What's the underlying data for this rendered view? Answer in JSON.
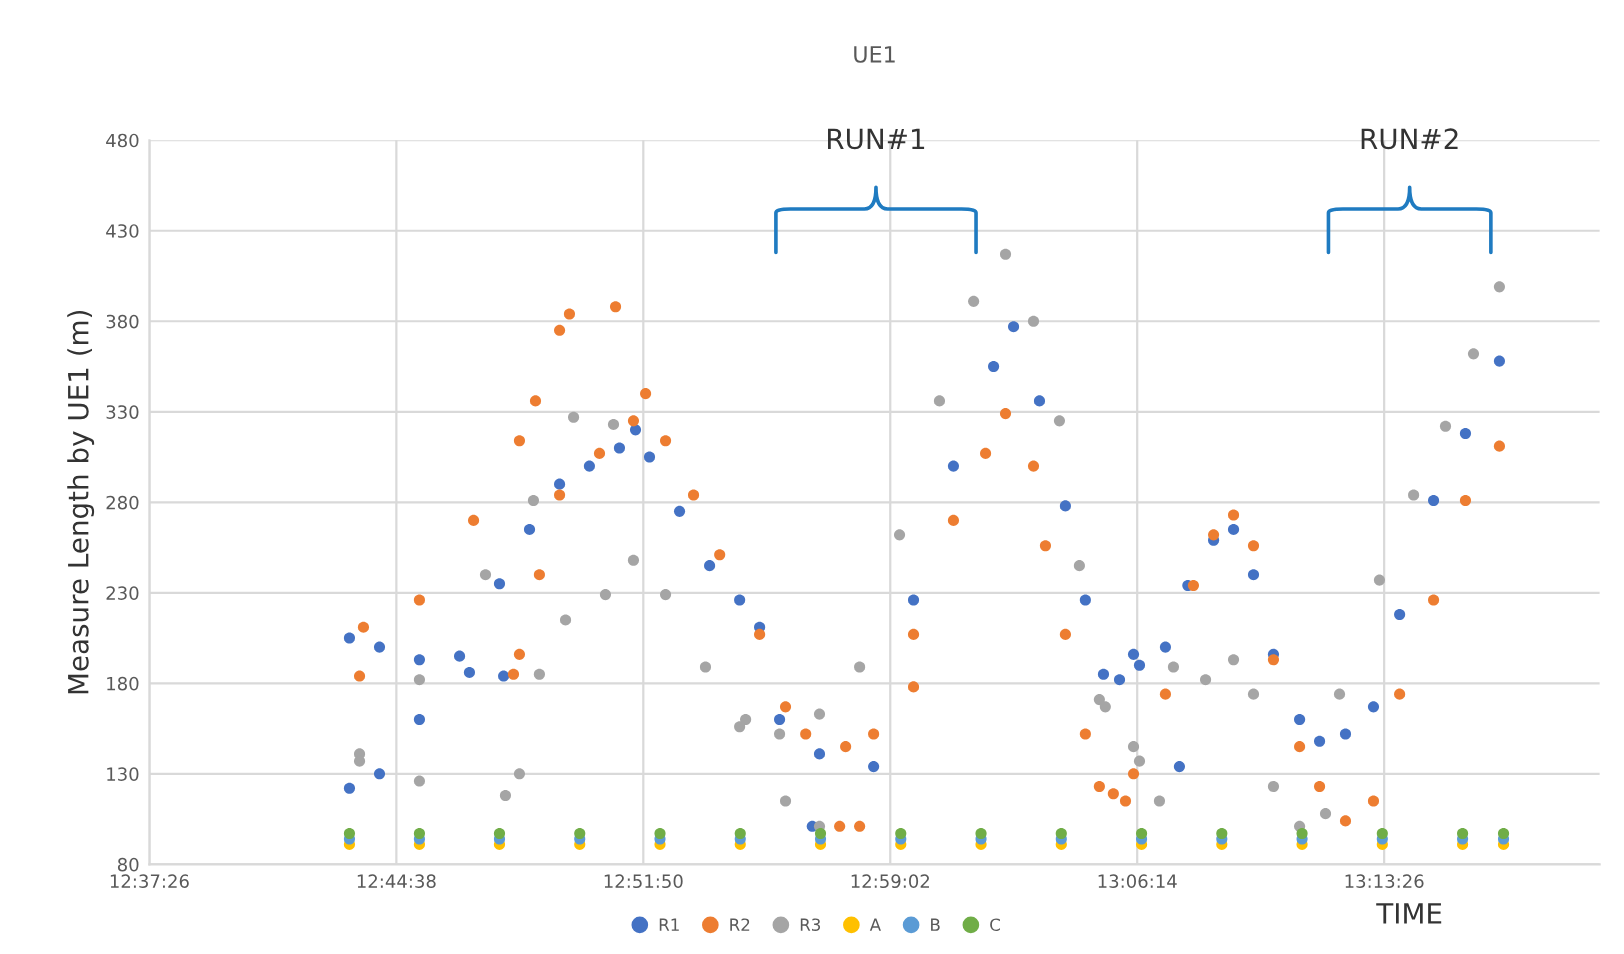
{
  "chart_data": {
    "type": "scatter",
    "title": "UE1",
    "xlabel": "TIME",
    "ylabel": "Measure Length by UE1 (m)",
    "annotations": [
      "RUN#1",
      "RUN#2"
    ],
    "xlim": [
      12.62389,
      13.3286
    ],
    "ylim": [
      80,
      480
    ],
    "xticks": [
      {
        "value": 12.62389,
        "label": "12:37:26"
      },
      {
        "value": 12.74389,
        "label": "12:44:38"
      },
      {
        "value": 12.86389,
        "label": "12:51:50"
      },
      {
        "value": 12.98389,
        "label": "12:59:02"
      },
      {
        "value": 13.10389,
        "label": "13:06:14"
      },
      {
        "value": 13.22389,
        "label": "13:13:26"
      }
    ],
    "yticks": [
      80,
      130,
      180,
      230,
      280,
      330,
      380,
      430,
      480
    ],
    "grid": true,
    "legend": "bottom",
    "marker": "circle",
    "series": [
      {
        "name": "R1",
        "color": "#4472c4",
        "x": [
          12.7211,
          12.7357,
          12.7551,
          12.7794,
          12.796,
          12.7211,
          12.7357,
          12.7551,
          12.7746,
          12.794,
          12.8086,
          12.8232,
          12.8377,
          12.8523,
          12.8601,
          12.8669,
          12.8815,
          12.8961,
          12.9107,
          12.9204,
          12.9301,
          12.946,
          12.9495,
          12.9758,
          12.9952,
          13.0146,
          13.0341,
          13.0438,
          13.0564,
          13.069,
          13.0787,
          13.0875,
          13.0953,
          13.1021,
          13.105,
          13.1176,
          13.1244,
          13.1285,
          13.141,
          13.1507,
          13.1604,
          13.1701,
          13.1828,
          13.1925,
          13.2051,
          13.2187,
          13.2314,
          13.2479,
          13.2634,
          13.2799
        ],
        "values": [
          205,
          200,
          193,
          186,
          184,
          122,
          130,
          160,
          195,
          235,
          265,
          290,
          300,
          310,
          320,
          305,
          275,
          245,
          226,
          211,
          160,
          101,
          141,
          134,
          226,
          300,
          355,
          377,
          336,
          278,
          226,
          185,
          182,
          196,
          190,
          200,
          134,
          234,
          259,
          265,
          240,
          196,
          160,
          148,
          152,
          167,
          218,
          281,
          318,
          358
        ]
      },
      {
        "name": "R2",
        "color": "#ed7d31",
        "x": [
          12.726,
          12.7551,
          12.7814,
          12.8037,
          12.8115,
          12.7279,
          12.8008,
          12.8037,
          12.8134,
          12.8232,
          12.8426,
          12.8591,
          12.865,
          12.8232,
          12.828,
          12.8504,
          12.8747,
          12.8883,
          12.901,
          12.9204,
          12.933,
          12.9428,
          12.9622,
          12.9758,
          12.9952,
          13.0146,
          13.0302,
          13.0399,
          13.0535,
          13.0593,
          13.069,
          13.0787,
          13.0923,
          13.1021,
          12.9593,
          12.969,
          12.9952,
          13.0855,
          13.0982,
          13.1176,
          13.1312,
          13.141,
          13.1507,
          13.1604,
          13.1701,
          13.1828,
          13.1925,
          13.2051,
          13.2187,
          13.2314,
          13.2479,
          13.2634,
          13.2799
        ],
        "values": [
          184,
          226,
          270,
          314,
          336,
          211,
          185,
          196,
          240,
          284,
          307,
          325,
          340,
          375,
          384,
          388,
          314,
          284,
          251,
          207,
          167,
          152,
          145,
          152,
          207,
          270,
          307,
          329,
          300,
          256,
          207,
          152,
          119,
          130,
          101,
          101,
          178,
          123,
          115,
          174,
          234,
          262,
          273,
          256,
          193,
          145,
          123,
          104,
          115,
          174,
          226,
          281,
          311
        ]
      },
      {
        "name": "R3",
        "color": "#a5a5a5",
        "x": [
          12.726,
          12.7551,
          12.7969,
          12.8037,
          12.8134,
          12.8261,
          12.8455,
          12.8591,
          12.8747,
          12.8941,
          12.9136,
          12.726,
          12.7551,
          12.7872,
          12.8105,
          12.83,
          12.8494,
          12.9107,
          12.9301,
          12.9495,
          12.933,
          12.9495,
          12.969,
          12.9884,
          13.0078,
          13.0244,
          13.0399,
          13.0535,
          13.0661,
          13.0758,
          13.0884,
          13.1021,
          13.0855,
          13.105,
          13.1147,
          13.1215,
          13.1371,
          13.1507,
          13.1604,
          13.1701,
          13.1828,
          13.1954,
          13.2022,
          13.2216,
          13.2382,
          13.2537,
          13.2673,
          13.2799
        ],
        "values": [
          141,
          126,
          118,
          130,
          185,
          215,
          229,
          248,
          229,
          189,
          160,
          137,
          182,
          240,
          281,
          327,
          323,
          156,
          152,
          163,
          115,
          101,
          189,
          262,
          336,
          391,
          417,
          380,
          325,
          245,
          167,
          145,
          171,
          137,
          115,
          189,
          182,
          193,
          174,
          123,
          101,
          108,
          174,
          237,
          284,
          322,
          362,
          399
        ]
      },
      {
        "name": "A",
        "color": "#ffc000",
        "x": [
          12.7211,
          12.7551,
          12.794,
          12.833,
          12.872,
          12.911,
          12.95,
          12.989,
          13.028,
          13.067,
          13.106,
          13.145,
          13.184,
          13.223,
          13.262,
          13.2819
        ],
        "values": [
          91,
          91,
          91,
          91,
          91,
          91,
          91,
          91,
          91,
          91,
          91,
          91,
          91,
          91,
          91,
          91
        ]
      },
      {
        "name": "B",
        "color": "#5b9bd5",
        "x": [
          12.7211,
          12.7551,
          12.794,
          12.833,
          12.872,
          12.911,
          12.95,
          12.989,
          13.028,
          13.067,
          13.106,
          13.145,
          13.184,
          13.223,
          13.262,
          13.2819
        ],
        "values": [
          94,
          94,
          94,
          94,
          94,
          94,
          94,
          94,
          94,
          94,
          94,
          94,
          94,
          94,
          94,
          94
        ]
      },
      {
        "name": "C",
        "color": "#70ad47",
        "x": [
          12.7211,
          12.7551,
          12.794,
          12.833,
          12.872,
          12.911,
          12.95,
          12.989,
          13.028,
          13.067,
          13.106,
          13.145,
          13.184,
          13.223,
          13.262,
          13.2819
        ],
        "values": [
          97,
          97,
          97,
          97,
          97,
          97,
          97,
          97,
          97,
          97,
          97,
          97,
          97,
          97,
          97,
          97
        ]
      }
    ]
  }
}
